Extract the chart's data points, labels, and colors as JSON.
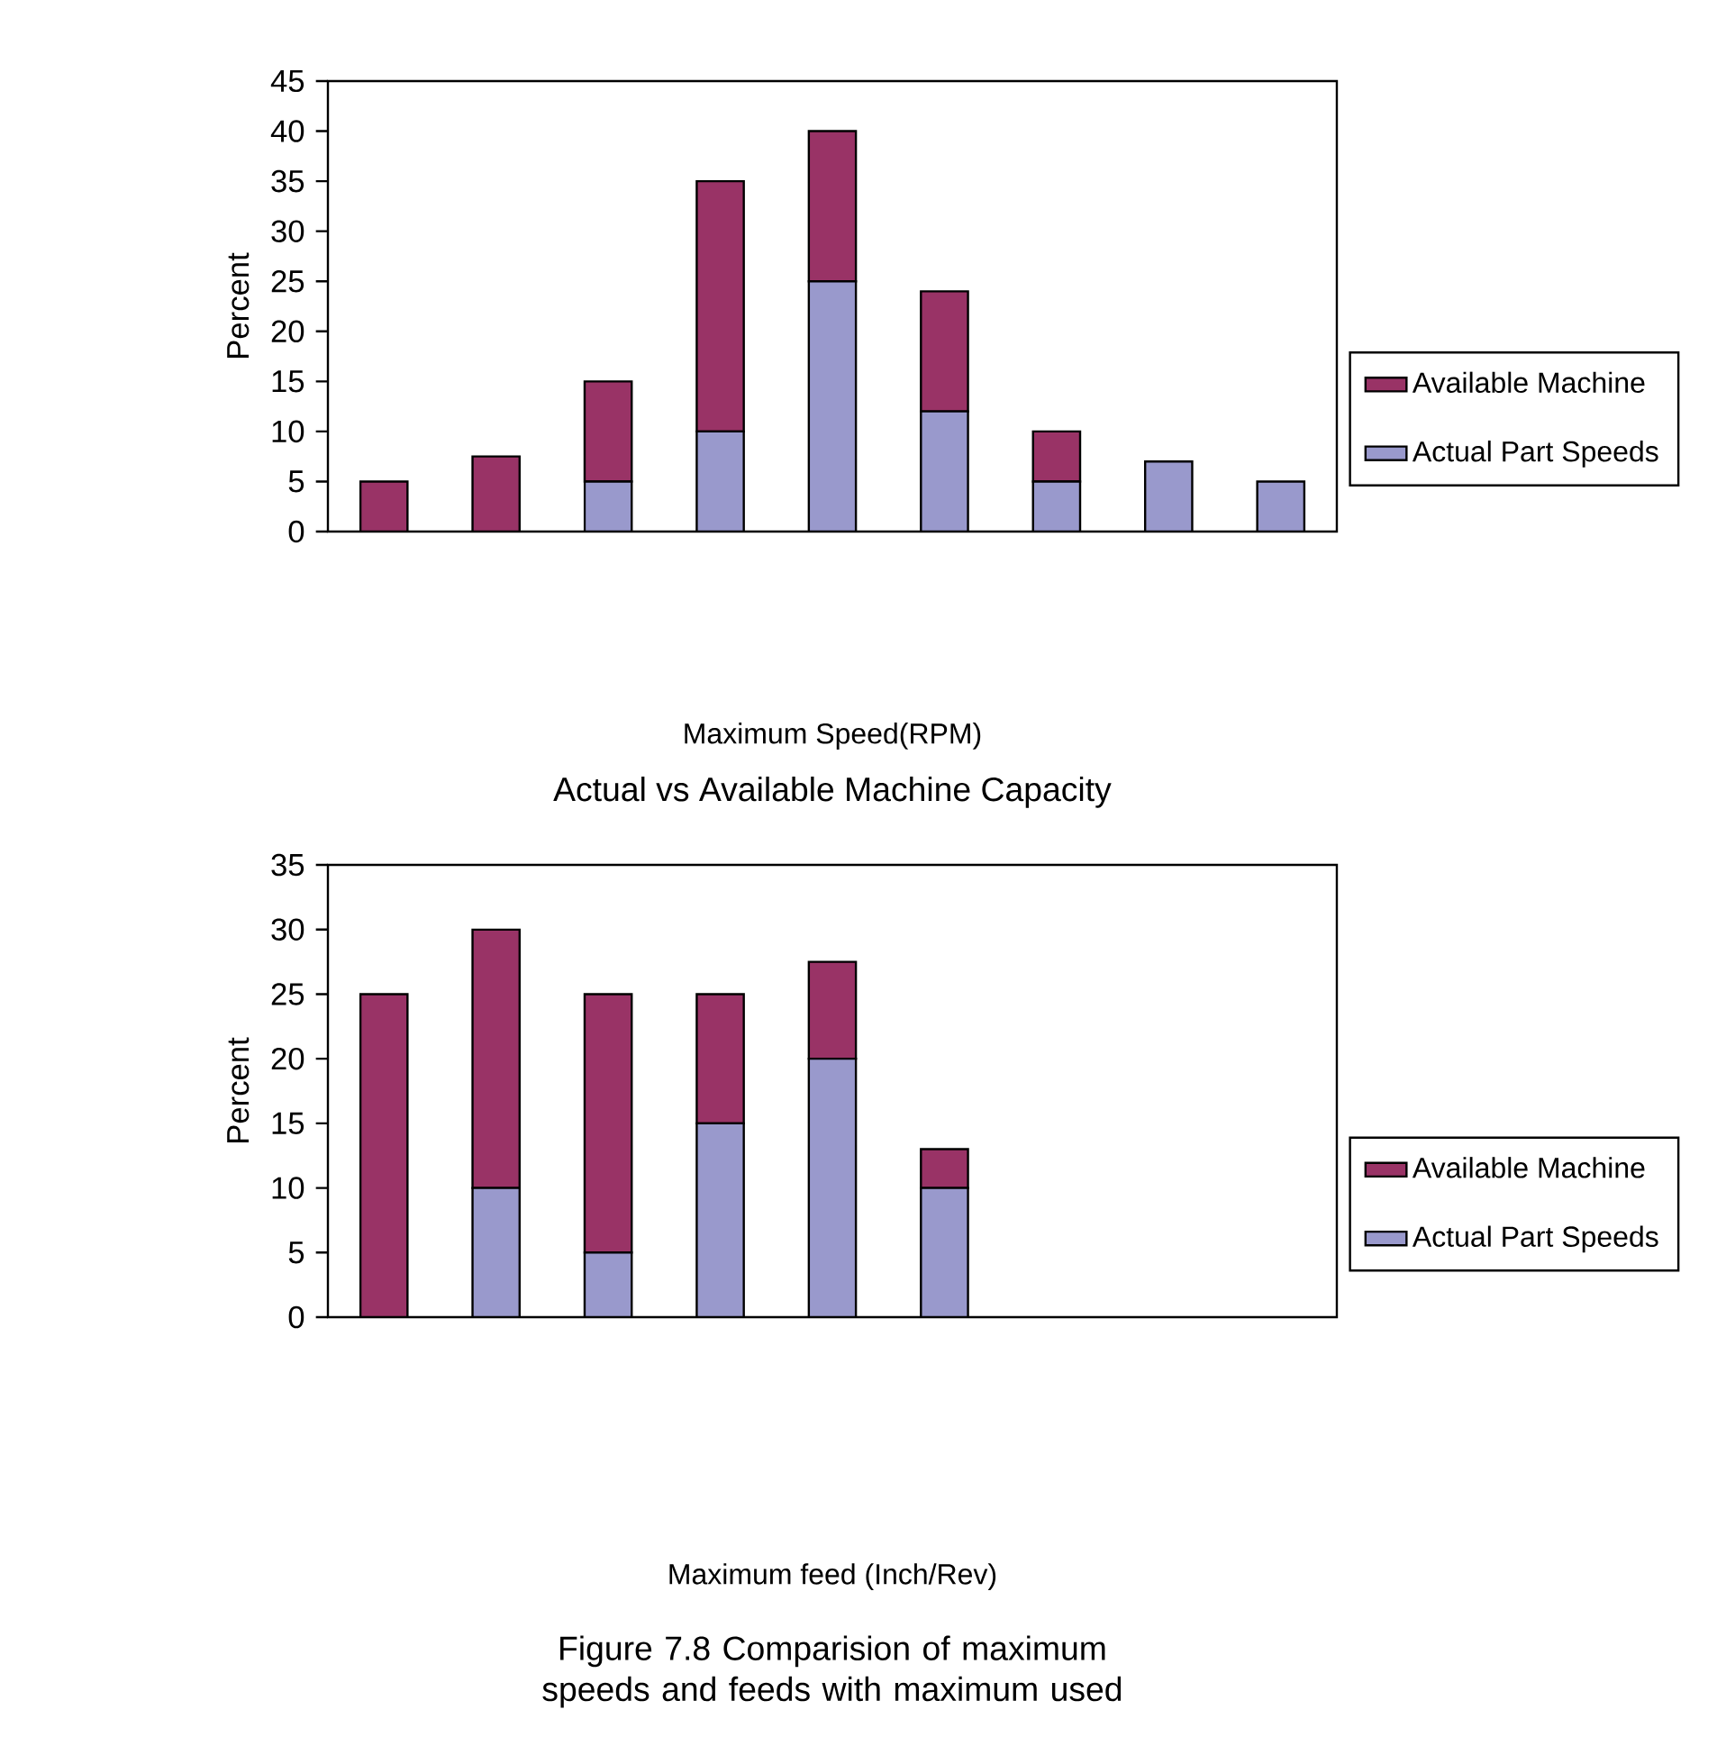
{
  "chart_data": [
    {
      "type": "bar",
      "stacked": true,
      "xlabel": "Maximum Speed(RPM)",
      "ylabel": "Percent",
      "categories": [
        null,
        null,
        null,
        null,
        null,
        null,
        null,
        null,
        null
      ],
      "series": [
        {
          "name": "Actual Part Speeds",
          "color": "#9999cc",
          "values": [
            null,
            null,
            5,
            10,
            25,
            12,
            5,
            7,
            5
          ]
        },
        {
          "name": "Available Machine",
          "color": "#993366",
          "values": [
            5,
            7.5,
            10,
            25,
            15,
            12,
            5,
            null,
            null
          ]
        }
      ],
      "ylim": [
        0,
        45
      ],
      "yticks": [
        0,
        5,
        10,
        15,
        20,
        25,
        30,
        35,
        40,
        45
      ],
      "legend": "right"
    },
    {
      "type": "bar",
      "stacked": true,
      "title": "Actual vs Available Machine Capacity",
      "xlabel": "Maximum feed (Inch/Rev)",
      "ylabel": "Percent",
      "categories": [
        null,
        null,
        null,
        null,
        null,
        null,
        null,
        null,
        null
      ],
      "series": [
        {
          "name": "Actual Part Speeds",
          "color": "#9999cc",
          "values": [
            null,
            10,
            5,
            15,
            20,
            10,
            null,
            null,
            null
          ]
        },
        {
          "name": "Available Machine",
          "color": "#993366",
          "values": [
            25,
            20,
            20,
            10,
            7.5,
            3,
            null,
            null,
            null
          ]
        }
      ],
      "ylim": [
        0,
        35
      ],
      "yticks": [
        0,
        5,
        10,
        15,
        20,
        25,
        30,
        35
      ],
      "legend": "right",
      "annotations": [
        "Figure 7.8 Comparision of maximum speeds and feeds with maximum used"
      ]
    }
  ]
}
